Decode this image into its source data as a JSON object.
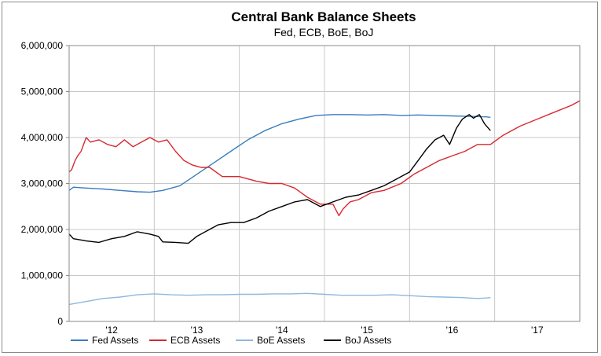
{
  "chart_data": {
    "type": "line",
    "title": "Central Bank Balance Sheets",
    "subtitle": "Fed, ECB, BoE, BoJ",
    "xlabel": "",
    "ylabel": "",
    "ylim": [
      0,
      6000000
    ],
    "yticks": [
      {
        "value": 0,
        "label": "0"
      },
      {
        "value": 1000000,
        "label": "1,000,000"
      },
      {
        "value": 2000000,
        "label": "2,000,000"
      },
      {
        "value": 3000000,
        "label": "3,000,000"
      },
      {
        "value": 4000000,
        "label": "4,000,000"
      },
      {
        "value": 5000000,
        "label": "5,000,000"
      },
      {
        "value": 6000000,
        "label": "6,000,000"
      }
    ],
    "xlim": [
      2011.5,
      2017.5
    ],
    "xticks": [
      {
        "value": 2012,
        "label": "'12"
      },
      {
        "value": 2013,
        "label": "'13"
      },
      {
        "value": 2014,
        "label": "'14"
      },
      {
        "value": 2015,
        "label": "'15"
      },
      {
        "value": 2016,
        "label": "'16"
      },
      {
        "value": 2017,
        "label": "'17"
      }
    ],
    "xgrid": [
      2011.5,
      2012.5,
      2013.5,
      2014.5,
      2015.5,
      2016.5,
      2017.5
    ],
    "grid": true,
    "legend_position": "bottom",
    "series": [
      {
        "name": "Fed Assets",
        "color": "#3a7dbf",
        "points": [
          [
            2011.5,
            2850000
          ],
          [
            2011.55,
            2920000
          ],
          [
            2011.7,
            2900000
          ],
          [
            2011.9,
            2880000
          ],
          [
            2012.1,
            2850000
          ],
          [
            2012.3,
            2820000
          ],
          [
            2012.45,
            2810000
          ],
          [
            2012.6,
            2850000
          ],
          [
            2012.8,
            2950000
          ],
          [
            2013.0,
            3200000
          ],
          [
            2013.2,
            3450000
          ],
          [
            2013.4,
            3700000
          ],
          [
            2013.6,
            3950000
          ],
          [
            2013.8,
            4150000
          ],
          [
            2014.0,
            4300000
          ],
          [
            2014.2,
            4400000
          ],
          [
            2014.4,
            4480000
          ],
          [
            2014.6,
            4500000
          ],
          [
            2014.8,
            4500000
          ],
          [
            2015.0,
            4490000
          ],
          [
            2015.2,
            4500000
          ],
          [
            2015.4,
            4480000
          ],
          [
            2015.6,
            4490000
          ],
          [
            2015.8,
            4480000
          ],
          [
            2016.0,
            4470000
          ],
          [
            2016.2,
            4460000
          ],
          [
            2016.4,
            4450000
          ],
          [
            2016.45,
            4440000
          ]
        ]
      },
      {
        "name": "ECB Assets",
        "color": "#d9282f",
        "points": [
          [
            2011.5,
            3250000
          ],
          [
            2011.53,
            3300000
          ],
          [
            2011.57,
            3500000
          ],
          [
            2011.6,
            3600000
          ],
          [
            2011.64,
            3700000
          ],
          [
            2011.7,
            4000000
          ],
          [
            2011.75,
            3900000
          ],
          [
            2011.85,
            3950000
          ],
          [
            2011.95,
            3850000
          ],
          [
            2012.05,
            3800000
          ],
          [
            2012.15,
            3950000
          ],
          [
            2012.25,
            3800000
          ],
          [
            2012.35,
            3900000
          ],
          [
            2012.45,
            4000000
          ],
          [
            2012.55,
            3900000
          ],
          [
            2012.65,
            3950000
          ],
          [
            2012.75,
            3700000
          ],
          [
            2012.85,
            3500000
          ],
          [
            2012.95,
            3400000
          ],
          [
            2013.05,
            3350000
          ],
          [
            2013.15,
            3350000
          ],
          [
            2013.3,
            3150000
          ],
          [
            2013.5,
            3150000
          ],
          [
            2013.7,
            3050000
          ],
          [
            2013.85,
            3000000
          ],
          [
            2014.0,
            3000000
          ],
          [
            2014.15,
            2900000
          ],
          [
            2014.3,
            2700000
          ],
          [
            2014.45,
            2550000
          ],
          [
            2014.6,
            2550000
          ],
          [
            2014.67,
            2300000
          ],
          [
            2014.72,
            2450000
          ],
          [
            2014.8,
            2600000
          ],
          [
            2014.9,
            2650000
          ],
          [
            2015.05,
            2800000
          ],
          [
            2015.2,
            2850000
          ],
          [
            2015.4,
            3000000
          ],
          [
            2015.55,
            3200000
          ],
          [
            2015.7,
            3350000
          ],
          [
            2015.85,
            3500000
          ],
          [
            2016.0,
            3600000
          ],
          [
            2016.15,
            3700000
          ],
          [
            2016.3,
            3850000
          ],
          [
            2016.45,
            3850000
          ],
          [
            2016.6,
            4050000
          ],
          [
            2016.8,
            4250000
          ],
          [
            2017.0,
            4400000
          ],
          [
            2017.2,
            4550000
          ],
          [
            2017.4,
            4700000
          ],
          [
            2017.5,
            4800000
          ]
        ]
      },
      {
        "name": "BoE Assets",
        "color": "#8fb8dc",
        "points": [
          [
            2011.5,
            370000
          ],
          [
            2011.6,
            400000
          ],
          [
            2011.75,
            450000
          ],
          [
            2011.9,
            500000
          ],
          [
            2012.1,
            530000
          ],
          [
            2012.3,
            580000
          ],
          [
            2012.5,
            600000
          ],
          [
            2012.7,
            580000
          ],
          [
            2012.9,
            570000
          ],
          [
            2013.1,
            580000
          ],
          [
            2013.3,
            580000
          ],
          [
            2013.5,
            590000
          ],
          [
            2013.7,
            590000
          ],
          [
            2013.9,
            600000
          ],
          [
            2014.1,
            600000
          ],
          [
            2014.3,
            610000
          ],
          [
            2014.5,
            590000
          ],
          [
            2014.7,
            570000
          ],
          [
            2014.9,
            570000
          ],
          [
            2015.1,
            570000
          ],
          [
            2015.3,
            580000
          ],
          [
            2015.5,
            560000
          ],
          [
            2015.7,
            540000
          ],
          [
            2015.9,
            530000
          ],
          [
            2016.1,
            520000
          ],
          [
            2016.3,
            500000
          ],
          [
            2016.4,
            510000
          ],
          [
            2016.45,
            520000
          ]
        ]
      },
      {
        "name": "BoJ Assets",
        "color": "#000000",
        "points": [
          [
            2011.5,
            1900000
          ],
          [
            2011.55,
            1800000
          ],
          [
            2011.7,
            1750000
          ],
          [
            2011.85,
            1720000
          ],
          [
            2012.0,
            1800000
          ],
          [
            2012.15,
            1850000
          ],
          [
            2012.3,
            1950000
          ],
          [
            2012.45,
            1900000
          ],
          [
            2012.55,
            1850000
          ],
          [
            2012.6,
            1730000
          ],
          [
            2012.75,
            1720000
          ],
          [
            2012.9,
            1700000
          ],
          [
            2013.0,
            1850000
          ],
          [
            2013.1,
            1950000
          ],
          [
            2013.25,
            2100000
          ],
          [
            2013.4,
            2150000
          ],
          [
            2013.55,
            2150000
          ],
          [
            2013.7,
            2250000
          ],
          [
            2013.85,
            2400000
          ],
          [
            2014.0,
            2500000
          ],
          [
            2014.15,
            2600000
          ],
          [
            2014.3,
            2650000
          ],
          [
            2014.45,
            2500000
          ],
          [
            2014.6,
            2600000
          ],
          [
            2014.75,
            2700000
          ],
          [
            2014.9,
            2750000
          ],
          [
            2015.05,
            2850000
          ],
          [
            2015.2,
            2950000
          ],
          [
            2015.35,
            3100000
          ],
          [
            2015.5,
            3250000
          ],
          [
            2015.6,
            3500000
          ],
          [
            2015.7,
            3750000
          ],
          [
            2015.8,
            3950000
          ],
          [
            2015.9,
            4050000
          ],
          [
            2015.97,
            3850000
          ],
          [
            2016.05,
            4200000
          ],
          [
            2016.12,
            4400000
          ],
          [
            2016.2,
            4500000
          ],
          [
            2016.25,
            4420000
          ],
          [
            2016.32,
            4500000
          ],
          [
            2016.38,
            4300000
          ],
          [
            2016.45,
            4150000
          ]
        ]
      }
    ]
  }
}
